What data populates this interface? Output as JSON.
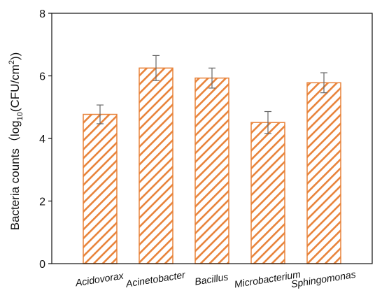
{
  "chart_data": {
    "type": "bar",
    "categories": [
      "Acidovorax",
      "Acinetobacter",
      "Bacillus",
      "Microbacterium",
      "Sphingomonas"
    ],
    "values": [
      4.77,
      6.25,
      5.93,
      4.51,
      5.78
    ],
    "errors": [
      0.3,
      0.4,
      0.32,
      0.35,
      0.32
    ],
    "title": "",
    "xlabel": "",
    "ylabel": {
      "prefix": "Bacteria counts（log",
      "subscript": "10",
      "middle": "(CFU/cm",
      "superscript": "2",
      "suffix": "))"
    },
    "ylim": [
      0,
      8
    ],
    "yticks": [
      "0",
      "2",
      "4",
      "6",
      "8"
    ],
    "bar_fill_pattern": "diagonal-hatch",
    "colors": {
      "bar_edge": "#e8833a",
      "hatch": "#e8833a",
      "error_bar": "#666666",
      "axis": "#111111"
    },
    "grid": false,
    "legend": "none",
    "category_label_style": "italic, rotated"
  }
}
